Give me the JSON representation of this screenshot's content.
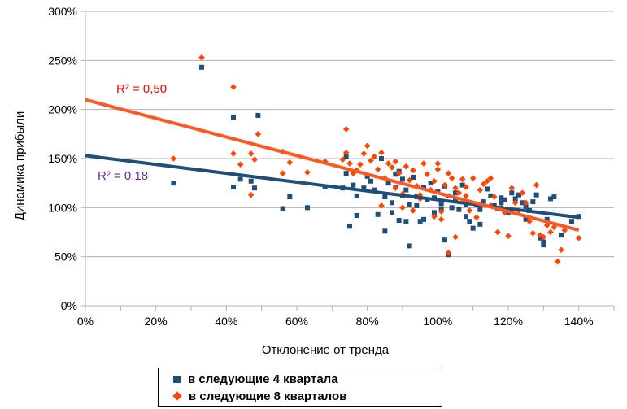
{
  "chart_data": {
    "type": "scatter",
    "title": "",
    "xlabel": "Отклонение от тренда",
    "ylabel": "Динамика прибыли",
    "xlim": [
      0,
      1.5
    ],
    "ylim": [
      0,
      3.0
    ],
    "x_ticks": [
      0,
      0.2,
      0.4,
      0.6,
      0.8,
      1.0,
      1.2,
      1.4
    ],
    "x_tick_labels": [
      "0%",
      "20%",
      "40%",
      "60%",
      "80%",
      "100%",
      "120%",
      "140%"
    ],
    "y_ticks": [
      0,
      0.5,
      1.0,
      1.5,
      2.0,
      2.5,
      3.0
    ],
    "y_tick_labels": [
      "0%",
      "50%",
      "100%",
      "150%",
      "200%",
      "250%",
      "300%"
    ],
    "grid": true,
    "legend_position": "bottom",
    "series": [
      {
        "name": "в следующие 4 квартала",
        "marker": "square",
        "color": "#1F4E79",
        "trend_color": "#1F4E79",
        "trendline": {
          "intercept": 1.53,
          "slope": -0.45
        },
        "r2_label": "R² = 0,18",
        "r2_color": "#7030A0",
        "points": [
          [
            0.25,
            1.25
          ],
          [
            0.33,
            2.43
          ],
          [
            0.42,
            1.92
          ],
          [
            0.42,
            1.21
          ],
          [
            0.44,
            1.29
          ],
          [
            0.47,
            1.27
          ],
          [
            0.48,
            1.2
          ],
          [
            0.49,
            1.94
          ],
          [
            0.56,
            0.99
          ],
          [
            0.58,
            1.11
          ],
          [
            0.63,
            1.0
          ],
          [
            0.68,
            1.21
          ],
          [
            0.73,
            1.2
          ],
          [
            0.74,
            1.35
          ],
          [
            0.74,
            1.52
          ],
          [
            0.75,
            0.81
          ],
          [
            0.76,
            1.23
          ],
          [
            0.77,
            1.12
          ],
          [
            0.77,
            0.92
          ],
          [
            0.79,
            1.2
          ],
          [
            0.8,
            1.32
          ],
          [
            0.81,
            1.27
          ],
          [
            0.82,
            1.18
          ],
          [
            0.83,
            0.93
          ],
          [
            0.84,
            1.5
          ],
          [
            0.85,
            1.11
          ],
          [
            0.85,
            0.76
          ],
          [
            0.86,
            1.25
          ],
          [
            0.87,
            1.05
          ],
          [
            0.87,
            0.95
          ],
          [
            0.88,
            1.21
          ],
          [
            0.88,
            1.34
          ],
          [
            0.89,
            0.87
          ],
          [
            0.89,
            1.37
          ],
          [
            0.9,
            1.12
          ],
          [
            0.91,
            0.86
          ],
          [
            0.91,
            1.18
          ],
          [
            0.92,
            1.03
          ],
          [
            0.92,
            0.61
          ],
          [
            0.93,
            1.31
          ],
          [
            0.94,
            1.11
          ],
          [
            0.94,
            1.02
          ],
          [
            0.95,
            0.86
          ],
          [
            0.96,
            1.21
          ],
          [
            0.97,
            1.08
          ],
          [
            0.98,
            1.25
          ],
          [
            0.99,
            1.1
          ],
          [
            0.99,
            0.95
          ],
          [
            1.0,
            1.16
          ],
          [
            1.01,
            1.04
          ],
          [
            1.01,
            0.98
          ],
          [
            1.02,
            0.67
          ],
          [
            1.02,
            1.22
          ],
          [
            1.03,
            1.12
          ],
          [
            1.03,
            0.52
          ],
          [
            1.04,
            1.0
          ],
          [
            1.05,
            1.09
          ],
          [
            1.06,
            0.98
          ],
          [
            1.07,
            1.23
          ],
          [
            1.08,
            1.03
          ],
          [
            1.08,
            0.91
          ],
          [
            1.09,
            0.86
          ],
          [
            1.1,
            0.79
          ],
          [
            1.11,
            1.03
          ],
          [
            1.12,
            0.98
          ],
          [
            1.13,
            1.06
          ],
          [
            1.14,
            1.19
          ],
          [
            1.15,
            1.12
          ],
          [
            1.16,
            1.02
          ],
          [
            1.17,
            0.99
          ],
          [
            1.18,
            1.1
          ],
          [
            1.19,
            1.08
          ],
          [
            1.2,
            0.95
          ],
          [
            1.21,
            1.15
          ],
          [
            1.22,
            1.09
          ],
          [
            1.23,
            1.13
          ],
          [
            1.24,
            1.05
          ],
          [
            1.25,
            0.88
          ],
          [
            1.26,
            0.97
          ],
          [
            1.27,
            1.06
          ],
          [
            1.28,
            1.13
          ],
          [
            1.29,
            0.69
          ],
          [
            1.3,
            0.65
          ],
          [
            1.31,
            0.88
          ],
          [
            1.32,
            1.09
          ],
          [
            1.33,
            1.11
          ],
          [
            1.35,
            0.72
          ],
          [
            1.38,
            0.86
          ],
          [
            1.4,
            0.91
          ],
          [
            1.3,
            0.62
          ],
          [
            1.12,
            0.83
          ],
          [
            1.05,
            1.15
          ],
          [
            0.96,
            0.88
          ],
          [
            0.9,
            1.29
          ],
          [
            1.18,
            1.05
          ],
          [
            1.25,
            1.01
          ]
        ]
      },
      {
        "name": "в следующие 8 кварталов",
        "marker": "diamond",
        "color": "#FF4500",
        "trend_color": "#FF5722",
        "trendline": {
          "intercept": 2.1,
          "slope": -0.95
        },
        "r2_label": "R² = 0,50",
        "r2_color": "#FF0000",
        "points": [
          [
            0.25,
            1.5
          ],
          [
            0.33,
            2.53
          ],
          [
            0.42,
            2.23
          ],
          [
            0.42,
            1.55
          ],
          [
            0.44,
            1.44
          ],
          [
            0.47,
            1.55
          ],
          [
            0.47,
            1.13
          ],
          [
            0.48,
            1.49
          ],
          [
            0.49,
            1.75
          ],
          [
            0.56,
            1.57
          ],
          [
            0.56,
            1.35
          ],
          [
            0.58,
            1.46
          ],
          [
            0.63,
            1.36
          ],
          [
            0.68,
            1.47
          ],
          [
            0.73,
            1.49
          ],
          [
            0.74,
            1.8
          ],
          [
            0.74,
            1.56
          ],
          [
            0.75,
            1.45
          ],
          [
            0.76,
            1.35
          ],
          [
            0.77,
            1.38
          ],
          [
            0.78,
            1.44
          ],
          [
            0.79,
            1.55
          ],
          [
            0.8,
            1.63
          ],
          [
            0.81,
            1.48
          ],
          [
            0.82,
            1.52
          ],
          [
            0.83,
            1.39
          ],
          [
            0.84,
            1.56
          ],
          [
            0.85,
            1.3
          ],
          [
            0.86,
            1.45
          ],
          [
            0.87,
            1.41
          ],
          [
            0.88,
            1.47
          ],
          [
            0.88,
            1.2
          ],
          [
            0.89,
            1.35
          ],
          [
            0.9,
            1.14
          ],
          [
            0.91,
            1.42
          ],
          [
            0.92,
            1.28
          ],
          [
            0.93,
            1.38
          ],
          [
            0.94,
            1.22
          ],
          [
            0.95,
            1.09
          ],
          [
            0.96,
            1.45
          ],
          [
            0.97,
            1.34
          ],
          [
            0.98,
            1.18
          ],
          [
            0.99,
            1.27
          ],
          [
            1.0,
            1.45
          ],
          [
            1.0,
            1.39
          ],
          [
            1.01,
            0.96
          ],
          [
            1.02,
            1.23
          ],
          [
            1.03,
            1.35
          ],
          [
            1.04,
            1.3
          ],
          [
            1.05,
            1.2
          ],
          [
            1.05,
            0.7
          ],
          [
            1.06,
            1.15
          ],
          [
            1.07,
            1.29
          ],
          [
            1.08,
            1.21
          ],
          [
            1.09,
            0.97
          ],
          [
            1.1,
            1.3
          ],
          [
            1.11,
            0.9
          ],
          [
            1.12,
            1.18
          ],
          [
            1.13,
            1.24
          ],
          [
            1.14,
            1.27
          ],
          [
            1.15,
            1.3
          ],
          [
            1.16,
            1.11
          ],
          [
            1.17,
            0.75
          ],
          [
            1.18,
            1.0
          ],
          [
            1.19,
            0.95
          ],
          [
            1.2,
            0.71
          ],
          [
            1.21,
            1.2
          ],
          [
            1.22,
            1.05
          ],
          [
            1.23,
            0.97
          ],
          [
            1.24,
            1.15
          ],
          [
            1.25,
            1.05
          ],
          [
            1.26,
            0.86
          ],
          [
            1.27,
            0.74
          ],
          [
            1.28,
            1.23
          ],
          [
            1.29,
            0.72
          ],
          [
            1.3,
            0.7
          ],
          [
            1.31,
            0.82
          ],
          [
            1.32,
            0.75
          ],
          [
            1.33,
            0.8
          ],
          [
            1.34,
            0.45
          ],
          [
            1.35,
            0.57
          ],
          [
            1.36,
            0.77
          ],
          [
            1.4,
            0.69
          ],
          [
            0.9,
            1.0
          ],
          [
            0.95,
            1.13
          ],
          [
            1.01,
            0.88
          ],
          [
            1.03,
            0.54
          ],
          [
            0.99,
            0.91
          ],
          [
            1.15,
            1.02
          ],
          [
            1.08,
            1.12
          ],
          [
            0.84,
            1.02
          ],
          [
            0.93,
            0.97
          ]
        ]
      }
    ]
  }
}
